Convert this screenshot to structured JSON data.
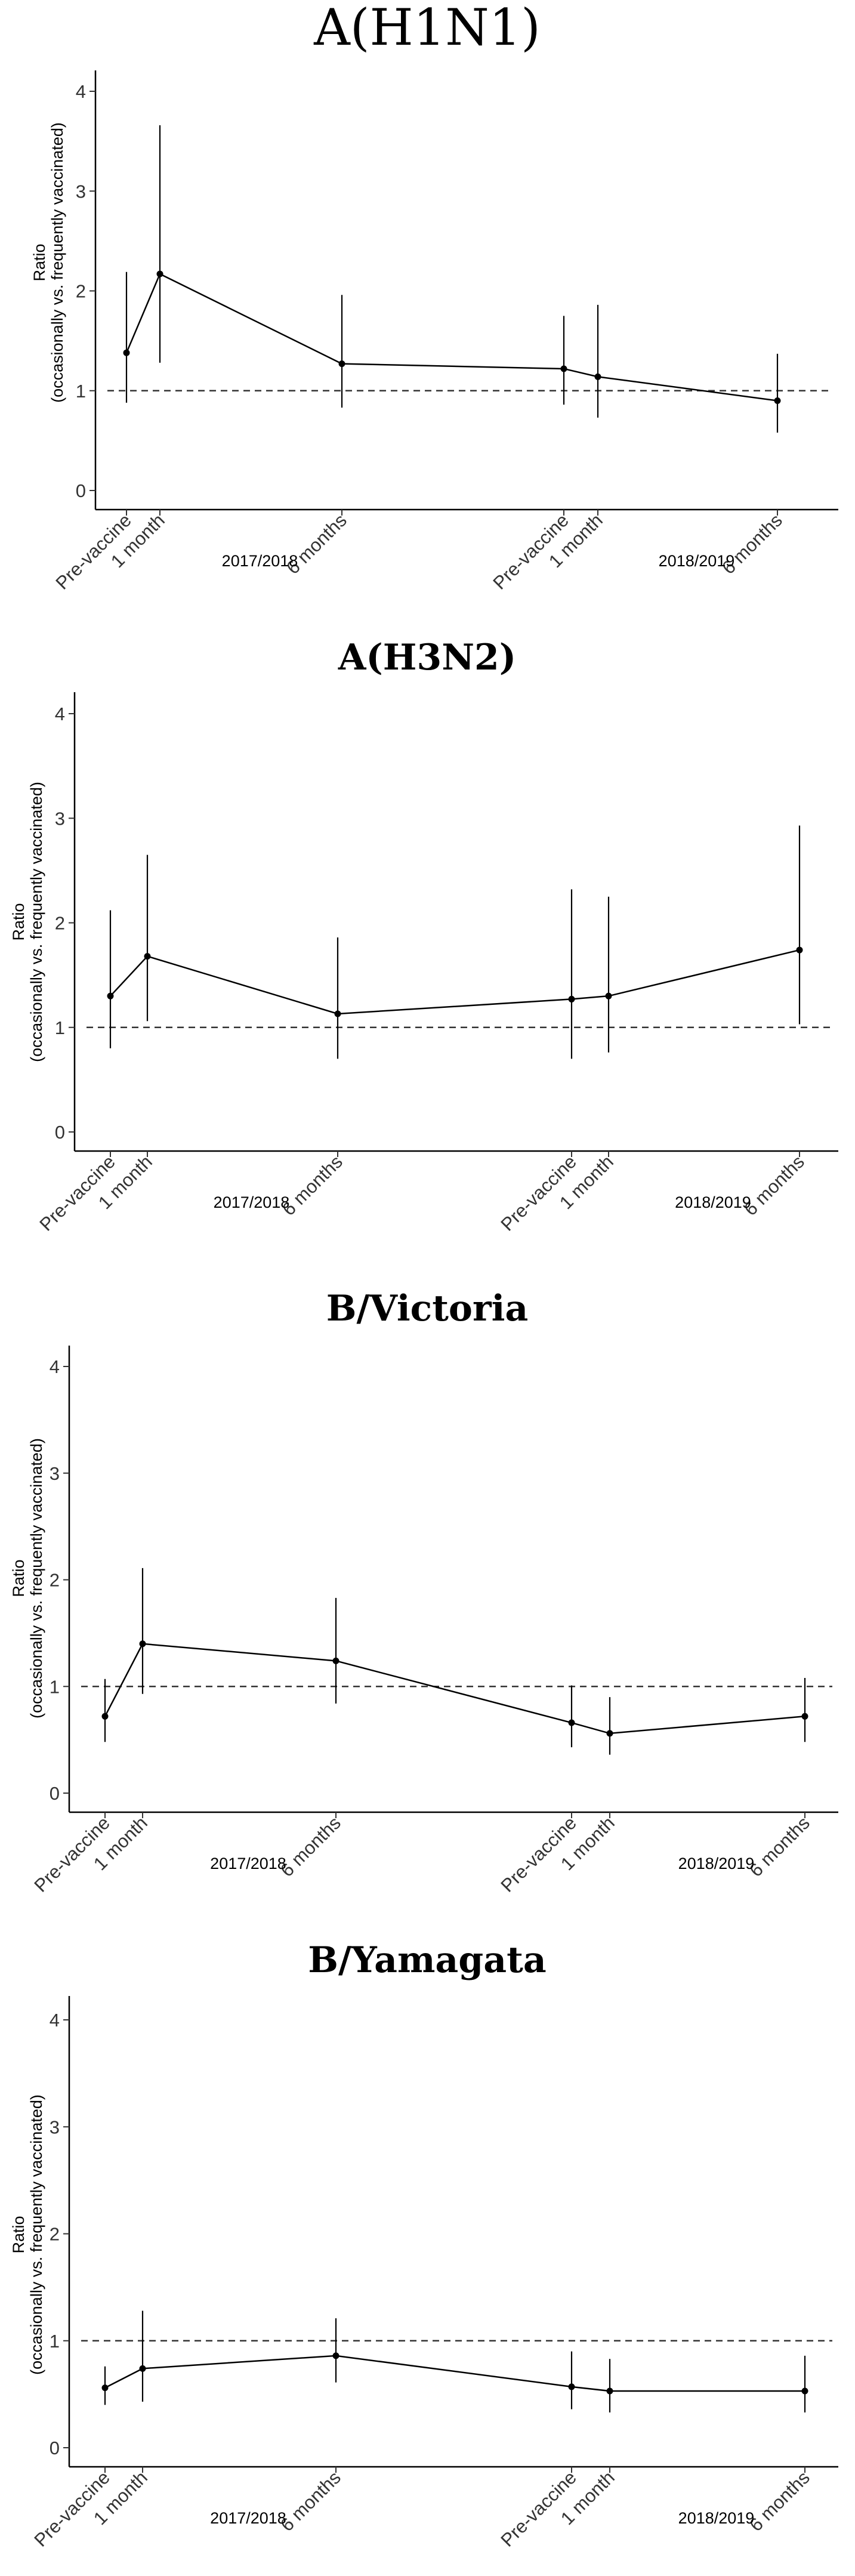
{
  "chart_data": [
    {
      "type": "line",
      "title": "A(H1N1)",
      "ylabel_line1": "Ratio",
      "ylabel_line2": "(occasionally vs. frequently vaccinated)",
      "ylim": [
        0,
        4
      ],
      "yticks": [
        0,
        1,
        2,
        3,
        4
      ],
      "reference_line": 1,
      "categories": [
        "Pre-vaccine",
        "1 month",
        "6 months",
        "Pre-vaccine",
        "1 month",
        "6 months"
      ],
      "season_labels": [
        "2017/2018",
        "2018/2019"
      ],
      "values": [
        1.38,
        2.17,
        1.27,
        1.22,
        1.14,
        0.9
      ],
      "lower": [
        0.88,
        1.28,
        0.83,
        0.86,
        0.73,
        0.58
      ],
      "upper": [
        2.19,
        3.66,
        1.96,
        1.75,
        1.86,
        1.37
      ]
    },
    {
      "type": "line",
      "title": "A(H3N2)",
      "ylabel_line1": "Ratio",
      "ylabel_line2": "(occasionally vs. frequently vaccinated)",
      "ylim": [
        0,
        4
      ],
      "yticks": [
        0,
        1,
        2,
        3,
        4
      ],
      "reference_line": 1,
      "categories": [
        "Pre-vaccine",
        "1 month",
        "6 months",
        "Pre-vaccine",
        "1 month",
        "6 months"
      ],
      "season_labels": [
        "2017/2018",
        "2018/2019"
      ],
      "values": [
        1.3,
        1.68,
        1.13,
        1.27,
        1.3,
        1.74
      ],
      "lower": [
        0.8,
        1.06,
        0.7,
        0.7,
        0.76,
        1.03
      ],
      "upper": [
        2.12,
        2.65,
        1.86,
        2.32,
        2.25,
        2.93
      ]
    },
    {
      "type": "line",
      "title": "B/Victoria",
      "ylabel_line1": "Ratio",
      "ylabel_line2": "(occasionally vs. frequently vaccinated)",
      "ylim": [
        0,
        4
      ],
      "yticks": [
        0,
        1,
        2,
        3,
        4
      ],
      "reference_line": 1,
      "categories": [
        "Pre-vaccine",
        "1 month",
        "6 months",
        "Pre-vaccine",
        "1 month",
        "6 months"
      ],
      "season_labels": [
        "2017/2018",
        "2018/2019"
      ],
      "values": [
        0.72,
        1.4,
        1.24,
        0.66,
        0.56,
        0.72
      ],
      "lower": [
        0.48,
        0.93,
        0.84,
        0.43,
        0.36,
        0.48
      ],
      "upper": [
        1.07,
        2.11,
        1.83,
        1.01,
        0.9,
        1.08
      ]
    },
    {
      "type": "line",
      "title": "B/Yamagata",
      "ylabel_line1": "Ratio",
      "ylabel_line2": "(occasionally vs. frequently vaccinated)",
      "ylim": [
        0,
        4
      ],
      "yticks": [
        0,
        1,
        2,
        3,
        4
      ],
      "reference_line": 1,
      "categories": [
        "Pre-vaccine",
        "1 month",
        "6 months",
        "Pre-vaccine",
        "1 month",
        "6 months"
      ],
      "season_labels": [
        "2017/2018",
        "2018/2019"
      ],
      "values": [
        0.56,
        0.74,
        0.86,
        0.57,
        0.53,
        0.53
      ],
      "lower": [
        0.4,
        0.43,
        0.61,
        0.36,
        0.33,
        0.33
      ],
      "upper": [
        0.76,
        1.28,
        1.21,
        0.9,
        0.83,
        0.86
      ]
    }
  ]
}
